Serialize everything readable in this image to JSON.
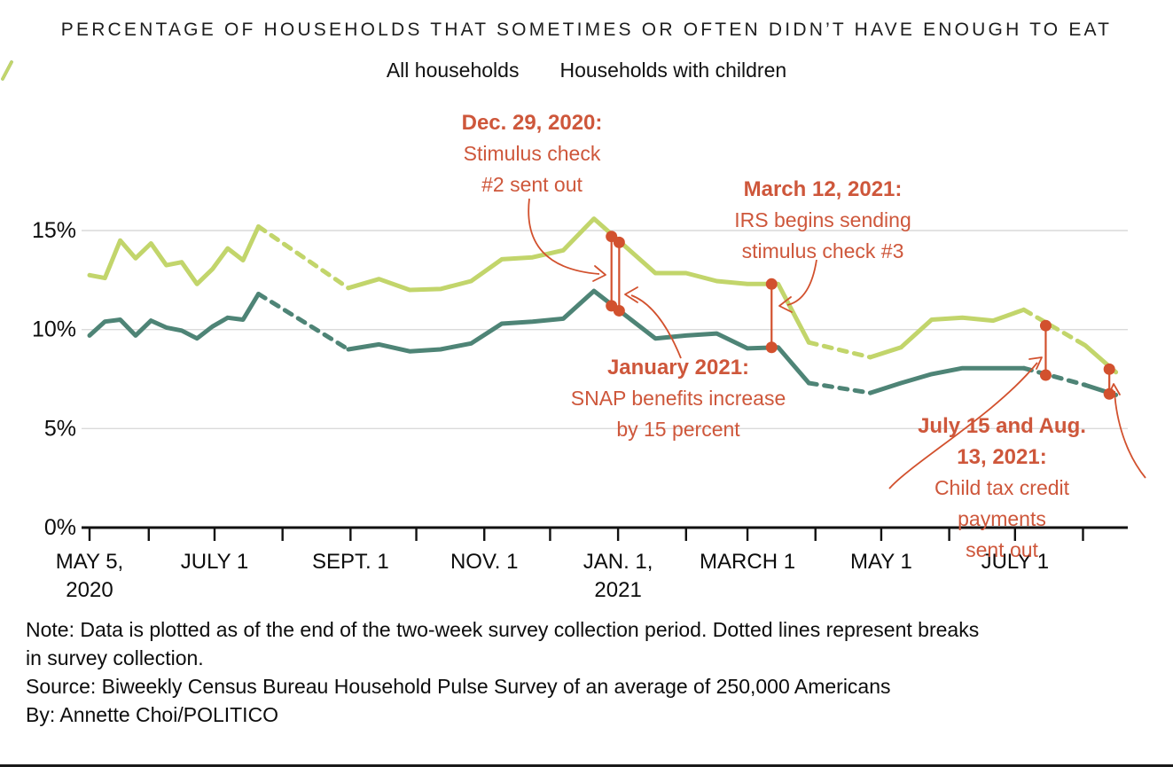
{
  "page": {
    "title": "PERCENTAGE OF HOUSEHOLDS THAT SOMETIMES OR OFTEN DIDN’T HAVE ENOUGH TO EAT"
  },
  "legend": {
    "items": [
      {
        "label": "All households",
        "color": "#4E8476"
      },
      {
        "label": "Households with children",
        "color": "#C2D56B"
      }
    ]
  },
  "annotations": {
    "dec29": {
      "title": "Dec. 29, 2020:",
      "line1": "Stimulus check",
      "line2": "#2 sent out"
    },
    "mar12": {
      "title": "March 12, 2021:",
      "line1": "IRS begins sending",
      "line2": "stimulus check #3"
    },
    "jan": {
      "title": "January 2021:",
      "line1": "SNAP benefits increase",
      "line2": "by 15 percent"
    },
    "jul15": {
      "title": "July 15 and Aug. 13, 2021:",
      "line1": "Child tax credit payments",
      "line2": "sent out"
    }
  },
  "notes": {
    "note_line1": "Note: Data is plotted as of the end of the two-week survey collection period. Dotted lines represent breaks",
    "note_line2": "in survey collection.",
    "source": "Source: Biweekly Census Bureau Household Pulse Survey of an average of 250,000 Americans",
    "byline": "By: Annette Choi/POLITICO"
  },
  "chart_data": {
    "type": "line",
    "title": "Percentage of households that sometimes or often didn't have enough to eat",
    "unit": "percent",
    "grid": "horizontal-only",
    "colors": {
      "all_households": "#4E8476",
      "households_with_children": "#C2D56B",
      "event_marks": "#D2512E",
      "annotation_text": "#CE573B",
      "gridline": "#DADADA",
      "axis": "#111111"
    },
    "y_axis": {
      "ticks": [
        {
          "value": 0,
          "label": "0%"
        },
        {
          "value": 5,
          "label": "5%"
        },
        {
          "value": 10,
          "label": "10%"
        },
        {
          "value": 15,
          "label": "15%"
        }
      ],
      "range": [
        0,
        16.6
      ]
    },
    "x_axis": {
      "start_date": "May 5, 2020",
      "end_date": "Aug. 16, 2021",
      "tick_days": [
        0,
        27,
        57,
        88,
        119,
        149,
        180,
        210,
        241,
        272,
        300,
        331,
        361,
        392,
        422,
        453
      ],
      "labels": [
        {
          "day": 0,
          "lines": [
            "MAY 5,",
            "2020"
          ]
        },
        {
          "day": 57,
          "lines": [
            "JULY 1"
          ]
        },
        {
          "day": 119,
          "lines": [
            "SEPT. 1"
          ]
        },
        {
          "day": 180,
          "lines": [
            "NOV. 1"
          ]
        },
        {
          "day": 241,
          "lines": [
            "JAN. 1,",
            "2021"
          ]
        },
        {
          "day": 300,
          "lines": [
            "MARCH 1"
          ]
        },
        {
          "day": 361,
          "lines": [
            "MAY 1"
          ]
        },
        {
          "day": 422,
          "lines": [
            "JULY 1"
          ]
        }
      ]
    },
    "dates": [
      "May 5, 2020",
      "May 12",
      "May 19",
      "May 26",
      "Jun 2",
      "Jun 9",
      "Jun 16",
      "Jun 23",
      "Jun 30",
      "Jul 7",
      "Jul 14",
      "Jul 21",
      "Aug 31",
      "Sep 14",
      "Sep 28",
      "Oct 12",
      "Oct 26",
      "Nov 9",
      "Nov 23",
      "Dec 7",
      "Dec 21",
      "Jan 18, 2021",
      "Feb 1",
      "Feb 15",
      "Mar 1",
      "Mar 15",
      "Mar 29",
      "Apr 26",
      "May 10",
      "May 24",
      "Jun 7",
      "Jun 21",
      "Jul 5",
      "Aug 2",
      "Aug 16"
    ],
    "days": [
      0,
      7,
      14,
      21,
      28,
      35,
      42,
      49,
      56,
      63,
      70,
      77,
      118,
      132,
      146,
      160,
      174,
      188,
      202,
      216,
      230,
      258,
      272,
      286,
      300,
      314,
      328,
      356,
      370,
      384,
      398,
      412,
      426,
      454,
      468
    ],
    "series": [
      {
        "name": "All households",
        "values": [
          9.7,
          10.4,
          10.5,
          9.7,
          10.45,
          10.1,
          9.95,
          9.55,
          10.15,
          10.6,
          10.5,
          11.8,
          9.0,
          9.25,
          8.9,
          9.0,
          9.3,
          10.3,
          10.4,
          10.55,
          11.95,
          9.55,
          9.7,
          9.8,
          9.05,
          9.1,
          7.3,
          6.8,
          7.3,
          7.75,
          8.05,
          8.05,
          8.05,
          7.2,
          6.7
        ]
      },
      {
        "name": "Households with children",
        "values": [
          12.75,
          12.6,
          14.5,
          13.6,
          14.35,
          13.25,
          13.4,
          12.3,
          13.05,
          14.1,
          13.5,
          15.2,
          12.1,
          12.55,
          12.0,
          12.05,
          12.45,
          13.55,
          13.65,
          14.0,
          15.6,
          12.85,
          12.85,
          12.45,
          12.3,
          12.3,
          9.35,
          8.6,
          9.1,
          10.5,
          10.6,
          10.45,
          11.0,
          9.2,
          7.85
        ]
      }
    ],
    "gap_after_indices": [
      11,
      26,
      32
    ],
    "gap_note": "Dotted segments = breaks in survey collection (after Jul 21 2020, Mar 29 2021, Jul 5 2021)",
    "events": [
      {
        "annotation": "dec29",
        "date": "Dec. 29, 2020",
        "day": 238,
        "all_households": 11.2,
        "households_with_children": 14.7
      },
      {
        "annotation": "jan",
        "date": "January 2021",
        "day": 241.5,
        "all_households": 10.95,
        "households_with_children": 14.4
      },
      {
        "annotation": "mar12",
        "date": "March 12, 2021",
        "day": 311,
        "all_households": 9.1,
        "households_with_children": 12.3
      },
      {
        "annotation": "jul15",
        "date": "July 15, 2021",
        "day": 436,
        "all_households": 7.7,
        "households_with_children": 10.2
      },
      {
        "annotation": "jul15",
        "date": "Aug. 13, 2021",
        "day": 465,
        "all_households": 6.75,
        "households_with_children": 8.0
      }
    ]
  }
}
